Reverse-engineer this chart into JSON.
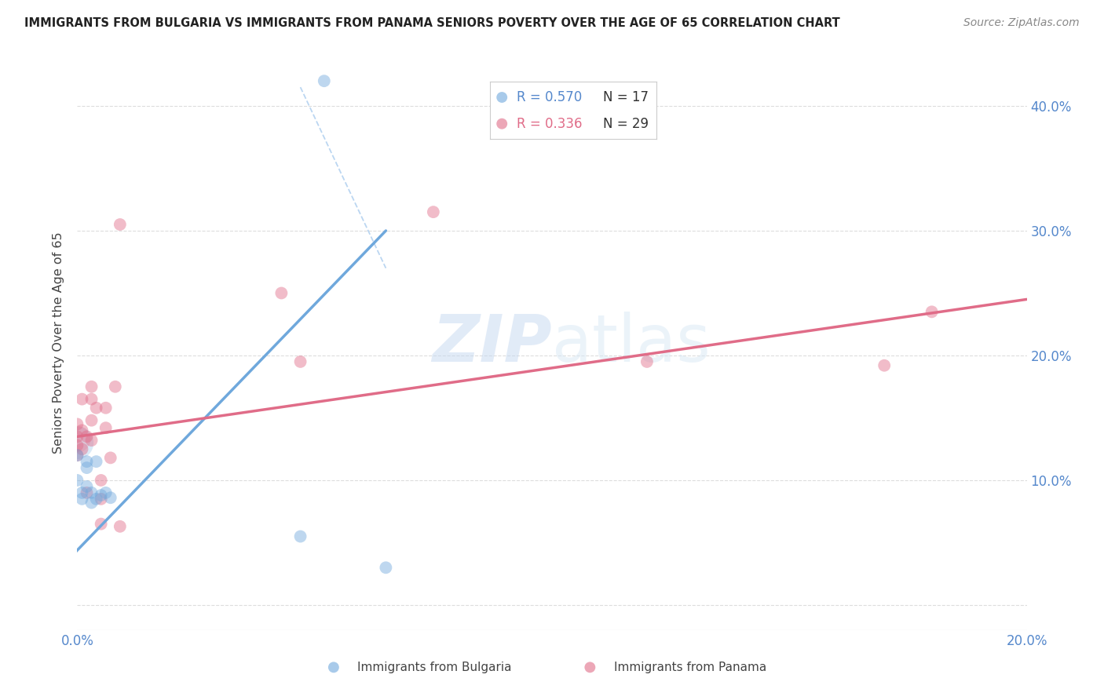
{
  "title": "IMMIGRANTS FROM BULGARIA VS IMMIGRANTS FROM PANAMA SENIORS POVERTY OVER THE AGE OF 65 CORRELATION CHART",
  "source": "Source: ZipAtlas.com",
  "ylabel": "Seniors Poverty Over the Age of 65",
  "xlim": [
    0.0,
    0.2
  ],
  "ylim": [
    -0.02,
    0.44
  ],
  "bulgaria_color": "#6fa8dc",
  "panama_color": "#e06c88",
  "bg_color": "#ffffff",
  "legend_R_bulgaria": "R = 0.570",
  "legend_N_bulgaria": "N = 17",
  "legend_R_panama": "R = 0.336",
  "legend_N_panama": "N = 29",
  "bulgaria_x": [
    0.0,
    0.0,
    0.001,
    0.001,
    0.002,
    0.002,
    0.002,
    0.003,
    0.003,
    0.004,
    0.004,
    0.005,
    0.006,
    0.007,
    0.047,
    0.065,
    0.052
  ],
  "bulgaria_y": [
    0.12,
    0.1,
    0.09,
    0.085,
    0.115,
    0.11,
    0.095,
    0.09,
    0.082,
    0.085,
    0.115,
    0.088,
    0.09,
    0.086,
    0.055,
    0.03,
    0.42
  ],
  "panama_x": [
    0.0,
    0.0,
    0.0,
    0.0,
    0.001,
    0.001,
    0.001,
    0.002,
    0.002,
    0.003,
    0.003,
    0.003,
    0.003,
    0.004,
    0.005,
    0.005,
    0.005,
    0.006,
    0.006,
    0.007,
    0.008,
    0.009,
    0.009,
    0.043,
    0.047,
    0.075,
    0.12,
    0.17,
    0.18
  ],
  "panama_y": [
    0.145,
    0.135,
    0.128,
    0.12,
    0.165,
    0.14,
    0.125,
    0.135,
    0.09,
    0.175,
    0.165,
    0.148,
    0.132,
    0.158,
    0.1,
    0.085,
    0.065,
    0.158,
    0.142,
    0.118,
    0.175,
    0.305,
    0.063,
    0.25,
    0.195,
    0.315,
    0.195,
    0.192,
    0.235
  ],
  "bulgaria_line_x": [
    -0.001,
    0.065
  ],
  "bulgaria_line_y": [
    0.04,
    0.3
  ],
  "panama_line_x": [
    0.0,
    0.2
  ],
  "panama_line_y": [
    0.135,
    0.245
  ],
  "dash_line_x": [
    0.047,
    0.065
  ],
  "dash_line_y": [
    0.415,
    0.27
  ]
}
